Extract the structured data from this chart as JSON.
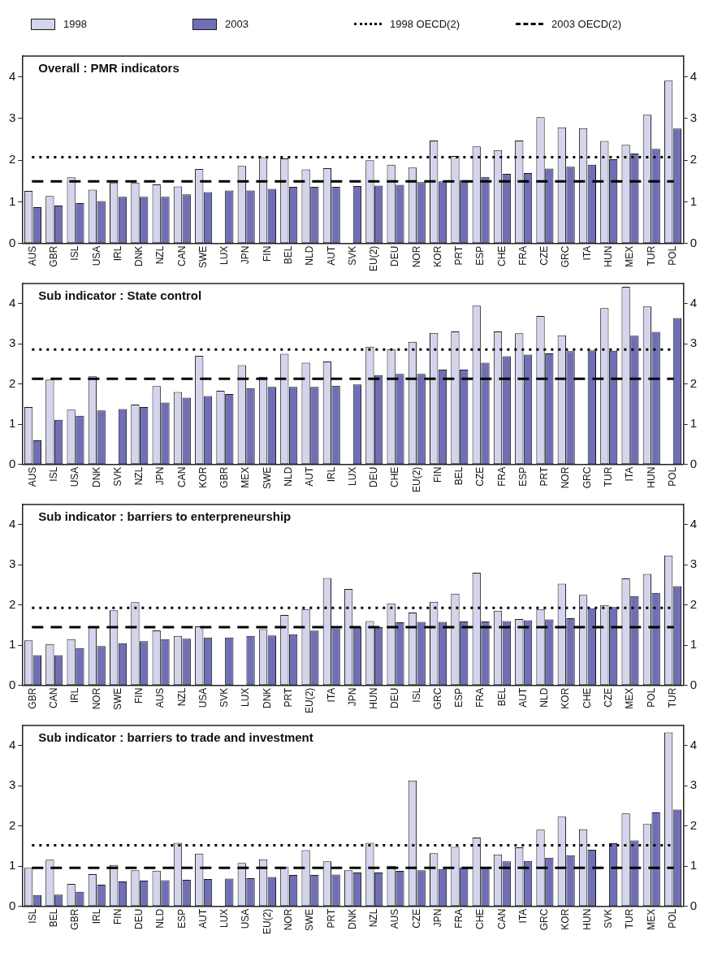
{
  "chart_data": [
    {
      "type": "bar",
      "title": "Overall : PMR indicators",
      "legend": "top",
      "categories": [
        "AUS",
        "GBR",
        "ISL",
        "USA",
        "IRL",
        "DNK",
        "NZL",
        "CAN",
        "SWE",
        "LUX",
        "JPN",
        "FIN",
        "BEL",
        "NLD",
        "AUT",
        "SVK",
        "EU(2)",
        "DEU",
        "NOR",
        "KOR",
        "PRT",
        "ESP",
        "CHE",
        "FRA",
        "CZE",
        "GRC",
        "ITA",
        "HUN",
        "MEX",
        "TUR",
        "POL"
      ],
      "series": [
        {
          "name": "1998",
          "color": "#d4d4ec",
          "values": [
            1.26,
            1.14,
            1.59,
            1.29,
            1.46,
            1.46,
            1.42,
            1.37,
            1.79,
            null,
            1.86,
            2.07,
            2.04,
            1.78,
            1.81,
            null,
            2.0,
            1.89,
            1.82,
            2.47,
            2.1,
            2.33,
            2.24,
            2.47,
            3.03,
            2.79,
            2.77,
            2.46,
            2.37,
            3.09,
            3.91
          ]
        },
        {
          "name": "2003",
          "color": "#6f6fb8",
          "values": [
            0.87,
            0.91,
            0.97,
            1.02,
            1.12,
            1.12,
            1.12,
            1.18,
            1.23,
            1.27,
            1.27,
            1.31,
            1.36,
            1.36,
            1.36,
            1.38,
            1.39,
            1.41,
            1.47,
            1.49,
            1.52,
            1.6,
            1.67,
            1.69,
            1.8,
            1.84,
            1.89,
            2.02,
            2.16,
            2.27,
            2.76
          ]
        }
      ],
      "ref_lines": [
        {
          "axis": "y",
          "value": 2.07,
          "label": "1998 OECD(2)",
          "line_style": "dotted",
          "color": "#000000"
        },
        {
          "axis": "y",
          "value": 1.49,
          "label": "2003 OECD(2)",
          "line_style": "dashed",
          "color": "#000000"
        }
      ],
      "ylim": [
        0,
        4.5
      ],
      "yticks": [
        0,
        1,
        2,
        3,
        4
      ],
      "y2lim": [
        0,
        4.5
      ],
      "y2ticks": [
        0,
        1,
        2,
        3,
        4
      ]
    },
    {
      "type": "bar",
      "title": "Sub indicator : State control",
      "categories": [
        "AUS",
        "ISL",
        "USA",
        "DNK",
        "SVK",
        "NZL",
        "JPN",
        "CAN",
        "KOR",
        "GBR",
        "MEX",
        "SWE",
        "NLD",
        "AUT",
        "IRL",
        "LUX",
        "DEU",
        "CHE",
        "EU(2)",
        "FIN",
        "BEL",
        "CZE",
        "FRA",
        "ESP",
        "PRT",
        "NOR",
        "GRC",
        "TUR",
        "ITA",
        "HUN",
        "POL"
      ],
      "series": [
        {
          "color": "#d4d4ec",
          "values": [
            1.43,
            2.11,
            1.36,
            2.19,
            null,
            1.49,
            1.95,
            1.8,
            2.7,
            1.83,
            2.47,
            2.18,
            2.75,
            2.53,
            2.56,
            null,
            2.93,
            2.87,
            3.05,
            3.27,
            3.31,
            3.95,
            3.31,
            3.26,
            3.69,
            3.21,
            null,
            3.89,
            4.42,
            3.93,
            null
          ]
        },
        {
          "color": "#6f6fb8",
          "values": [
            0.6,
            1.11,
            1.21,
            1.34,
            1.38,
            1.43,
            1.54,
            1.66,
            1.7,
            1.75,
            1.9,
            1.93,
            1.93,
            1.93,
            1.96,
            1.99,
            2.22,
            2.25,
            2.25,
            2.36,
            2.36,
            2.53,
            2.69,
            2.73,
            2.76,
            2.82,
            2.84,
            2.83,
            3.2,
            3.3,
            3.64
          ]
        }
      ],
      "ref_lines": [
        {
          "axis": "y",
          "value": 2.86,
          "line_style": "dotted",
          "color": "#000000"
        },
        {
          "axis": "y",
          "value": 2.13,
          "line_style": "dashed",
          "color": "#000000"
        }
      ],
      "ylim": [
        0,
        4.5
      ],
      "yticks": [
        0,
        1,
        2,
        3,
        4
      ],
      "y2lim": [
        0,
        4.5
      ],
      "y2ticks": [
        0,
        1,
        2,
        3,
        4
      ]
    },
    {
      "type": "bar",
      "title": "Sub indicator : barriers to enterpreneurship",
      "categories": [
        "GBR",
        "CAN",
        "IRL",
        "NOR",
        "SWE",
        "FIN",
        "AUS",
        "NZL",
        "USA",
        "SVK",
        "LUX",
        "DNK",
        "PRT",
        "EU(2)",
        "ITA",
        "JPN",
        "HUN",
        "DEU",
        "ISL",
        "GRC",
        "ESP",
        "FRA",
        "BEL",
        "AUT",
        "NLD",
        "KOR",
        "CHE",
        "CZE",
        "MEX",
        "POL",
        "TUR"
      ],
      "series": [
        {
          "color": "#d4d4ec",
          "values": [
            1.12,
            1.03,
            1.15,
            1.46,
            1.87,
            2.07,
            1.37,
            1.23,
            1.47,
            null,
            null,
            1.4,
            1.75,
            1.9,
            2.67,
            2.4,
            1.6,
            2.04,
            1.81,
            2.08,
            2.28,
            2.8,
            1.86,
            1.65,
            1.9,
            2.53,
            2.25,
            2.0,
            2.66,
            2.77,
            3.23
          ]
        },
        {
          "color": "#6f6fb8",
          "values": [
            0.75,
            0.75,
            0.93,
            0.98,
            1.05,
            1.1,
            1.15,
            1.16,
            1.19,
            1.19,
            1.23,
            1.24,
            1.27,
            1.36,
            1.42,
            1.45,
            1.45,
            1.57,
            1.58,
            1.58,
            1.59,
            1.59,
            1.6,
            1.62,
            1.64,
            1.67,
            1.92,
            1.95,
            2.22,
            2.3,
            2.47
          ]
        }
      ],
      "ref_lines": [
        {
          "axis": "y",
          "value": 1.93,
          "line_style": "dotted",
          "color": "#000000"
        },
        {
          "axis": "y",
          "value": 1.45,
          "line_style": "dashed",
          "color": "#000000"
        }
      ],
      "ylim": [
        0,
        4.5
      ],
      "yticks": [
        0,
        1,
        2,
        3,
        4
      ],
      "y2lim": [
        0,
        4.5
      ],
      "y2ticks": [
        0,
        1,
        2,
        3,
        4
      ]
    },
    {
      "type": "bar",
      "title": "Sub indicator : barriers to trade and investment",
      "categories": [
        "ISL",
        "BEL",
        "GBR",
        "IRL",
        "FIN",
        "DEU",
        "NLD",
        "ESP",
        "AUT",
        "LUX",
        "USA",
        "EU(2)",
        "NOR",
        "SWE",
        "PRT",
        "DNK",
        "NZL",
        "AUS",
        "CZE",
        "JPN",
        "FRA",
        "CHE",
        "CAN",
        "ITA",
        "GRC",
        "KOR",
        "HUN",
        "SVK",
        "TUR",
        "MEX",
        "POL"
      ],
      "series": [
        {
          "color": "#d4d4ec",
          "values": [
            0.96,
            1.16,
            0.56,
            0.8,
            1.03,
            0.9,
            0.89,
            1.58,
            1.31,
            null,
            1.08,
            1.17,
            0.98,
            1.4,
            1.12,
            0.9,
            1.58,
            1.01,
            3.13,
            1.32,
            1.48,
            1.71,
            1.29,
            1.47,
            1.91,
            2.23,
            1.92,
            null,
            2.31,
            2.05,
            4.33
          ]
        },
        {
          "color": "#6f6fb8",
          "values": [
            0.28,
            0.29,
            0.36,
            0.54,
            0.62,
            0.64,
            0.65,
            0.66,
            0.68,
            0.69,
            0.7,
            0.73,
            0.78,
            0.78,
            0.79,
            0.84,
            0.84,
            0.88,
            0.9,
            0.93,
            0.97,
            0.98,
            1.12,
            1.13,
            1.21,
            1.27,
            1.41,
            1.57,
            1.64,
            2.34,
            2.41
          ]
        }
      ],
      "ref_lines": [
        {
          "axis": "y",
          "value": 1.52,
          "line_style": "dotted",
          "color": "#000000"
        },
        {
          "axis": "y",
          "value": 0.96,
          "line_style": "dashed",
          "color": "#000000"
        }
      ],
      "ylim": [
        0,
        4.5
      ],
      "yticks": [
        0,
        1,
        2,
        3,
        4
      ],
      "y2lim": [
        0,
        4.5
      ],
      "y2ticks": [
        0,
        1,
        2,
        3,
        4
      ]
    }
  ]
}
